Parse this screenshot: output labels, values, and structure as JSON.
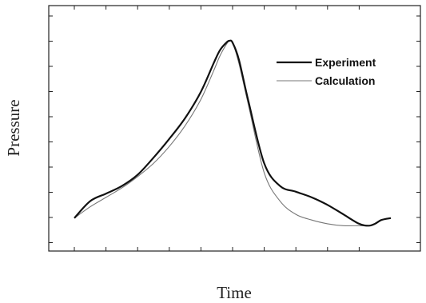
{
  "chart_data": {
    "type": "line",
    "title": "",
    "xlabel": "Time",
    "ylabel": "Pressure",
    "xlim": [
      0,
      1
    ],
    "ylim": [
      0,
      1
    ],
    "tick_labels_shown": false,
    "grid": false,
    "legend_position": "top-right",
    "series": [
      {
        "name": "Experiment",
        "color": "#111111",
        "style": "solid-bold",
        "x": [
          0.0,
          0.05,
          0.1,
          0.15,
          0.2,
          0.25,
          0.3,
          0.35,
          0.4,
          0.44,
          0.46,
          0.48,
          0.49,
          0.5,
          0.52,
          0.55,
          0.6,
          0.65,
          0.7,
          0.75,
          0.8,
          0.85,
          0.9,
          0.93,
          0.95,
          0.97,
          1.0
        ],
        "y": [
          0.06,
          0.15,
          0.19,
          0.23,
          0.29,
          0.38,
          0.48,
          0.59,
          0.73,
          0.88,
          0.95,
          0.99,
          1.0,
          0.99,
          0.9,
          0.68,
          0.35,
          0.23,
          0.2,
          0.17,
          0.13,
          0.08,
          0.03,
          0.02,
          0.03,
          0.05,
          0.06
        ]
      },
      {
        "name": "Calculation",
        "color": "#777777",
        "style": "solid-thin",
        "x": [
          0.0,
          0.05,
          0.1,
          0.15,
          0.2,
          0.25,
          0.3,
          0.35,
          0.4,
          0.44,
          0.46,
          0.48,
          0.49,
          0.5,
          0.52,
          0.55,
          0.6,
          0.65,
          0.7,
          0.75,
          0.8,
          0.85,
          0.9,
          0.93,
          0.95,
          0.97,
          1.0
        ],
        "y": [
          0.06,
          0.12,
          0.17,
          0.22,
          0.28,
          0.35,
          0.44,
          0.55,
          0.69,
          0.84,
          0.92,
          0.98,
          1.0,
          0.99,
          0.88,
          0.66,
          0.3,
          0.15,
          0.08,
          0.05,
          0.03,
          0.02,
          0.02,
          0.02,
          0.03,
          0.05,
          0.06
        ]
      }
    ]
  }
}
